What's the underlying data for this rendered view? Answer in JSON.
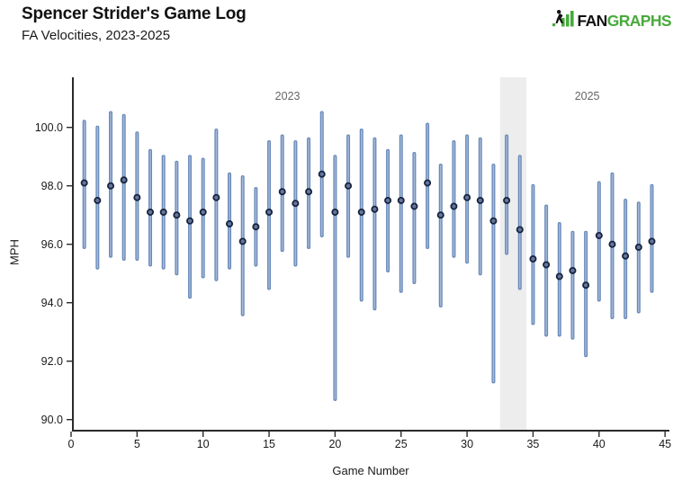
{
  "header": {
    "title": "Spencer Strider's Game Log",
    "subtitle": "FA Velocities, 2023-2025"
  },
  "logo": {
    "fan": "FAN",
    "graphs": "GRAPHS",
    "green": "#48a93c"
  },
  "chart_data": {
    "type": "scatter",
    "variant": "vertical-range-bars-with-mean-dot",
    "title": "Spencer Strider's Game Log",
    "subtitle": "FA Velocities, 2023-2025",
    "xlabel": "Game Number",
    "ylabel": "MPH",
    "xlim": [
      0,
      45
    ],
    "ylim": [
      90,
      101
    ],
    "x_ticks": [
      0,
      5,
      10,
      15,
      20,
      25,
      30,
      35,
      40,
      45
    ],
    "y_ticks": [
      90,
      92,
      94,
      96,
      98,
      100
    ],
    "grid": false,
    "legend": false,
    "annotations": {
      "band": {
        "x0": 32.5,
        "x1": 34.5,
        "color": "#ededed",
        "meaning": "gap between seasons"
      },
      "year_labels": [
        {
          "text": "2023",
          "x": 16.4
        },
        {
          "text": "2025",
          "x": 39.1
        }
      ]
    },
    "colors": {
      "bar": "#6889b9",
      "bar_highlight": "#a9bcd9",
      "dot_fill": "#64779a",
      "dot_stroke": "#16233f",
      "axis": "#2a2a2a",
      "tick_label": "#1a1a1a",
      "year_label": "#666666"
    },
    "points": [
      {
        "game": 1,
        "min": 95.9,
        "mean": 98.1,
        "max": 100.2
      },
      {
        "game": 2,
        "min": 95.2,
        "mean": 97.5,
        "max": 100.0
      },
      {
        "game": 3,
        "min": 95.6,
        "mean": 98.0,
        "max": 100.5
      },
      {
        "game": 4,
        "min": 95.5,
        "mean": 98.2,
        "max": 100.4
      },
      {
        "game": 5,
        "min": 95.5,
        "mean": 97.6,
        "max": 99.8
      },
      {
        "game": 6,
        "min": 95.3,
        "mean": 97.1,
        "max": 99.2
      },
      {
        "game": 7,
        "min": 95.2,
        "mean": 97.1,
        "max": 99.0
      },
      {
        "game": 8,
        "min": 95.0,
        "mean": 97.0,
        "max": 98.8
      },
      {
        "game": 9,
        "min": 94.2,
        "mean": 96.8,
        "max": 99.0
      },
      {
        "game": 10,
        "min": 94.9,
        "mean": 97.1,
        "max": 98.9
      },
      {
        "game": 11,
        "min": 94.8,
        "mean": 97.6,
        "max": 99.9
      },
      {
        "game": 12,
        "min": 95.2,
        "mean": 96.7,
        "max": 98.4
      },
      {
        "game": 13,
        "min": 93.6,
        "mean": 96.1,
        "max": 98.3
      },
      {
        "game": 14,
        "min": 95.3,
        "mean": 96.6,
        "max": 97.9
      },
      {
        "game": 15,
        "min": 94.5,
        "mean": 97.1,
        "max": 99.5
      },
      {
        "game": 16,
        "min": 95.8,
        "mean": 97.8,
        "max": 99.7
      },
      {
        "game": 17,
        "min": 95.3,
        "mean": 97.4,
        "max": 99.5
      },
      {
        "game": 18,
        "min": 95.9,
        "mean": 97.8,
        "max": 99.6
      },
      {
        "game": 19,
        "min": 96.3,
        "mean": 98.4,
        "max": 100.5
      },
      {
        "game": 20,
        "min": 90.7,
        "mean": 97.1,
        "max": 99.0
      },
      {
        "game": 21,
        "min": 95.6,
        "mean": 98.0,
        "max": 99.7
      },
      {
        "game": 22,
        "min": 94.1,
        "mean": 97.1,
        "max": 99.9
      },
      {
        "game": 23,
        "min": 93.8,
        "mean": 97.2,
        "max": 99.6
      },
      {
        "game": 24,
        "min": 95.1,
        "mean": 97.5,
        "max": 99.2
      },
      {
        "game": 25,
        "min": 94.4,
        "mean": 97.5,
        "max": 99.7
      },
      {
        "game": 26,
        "min": 94.7,
        "mean": 97.3,
        "max": 99.1
      },
      {
        "game": 27,
        "min": 95.9,
        "mean": 98.1,
        "max": 100.1
      },
      {
        "game": 28,
        "min": 93.9,
        "mean": 97.0,
        "max": 98.7
      },
      {
        "game": 29,
        "min": 95.6,
        "mean": 97.3,
        "max": 99.5
      },
      {
        "game": 30,
        "min": 95.4,
        "mean": 97.6,
        "max": 99.7
      },
      {
        "game": 31,
        "min": 95.0,
        "mean": 97.5,
        "max": 99.6
      },
      {
        "game": 32,
        "min": 91.3,
        "mean": 96.8,
        "max": 98.7
      },
      {
        "game": 33,
        "min": 95.7,
        "mean": 97.5,
        "max": 99.7
      },
      {
        "game": 34,
        "min": 94.5,
        "mean": 96.5,
        "max": 99.0
      },
      {
        "game": 35,
        "min": 93.3,
        "mean": 95.5,
        "max": 98.0
      },
      {
        "game": 36,
        "min": 92.9,
        "mean": 95.3,
        "max": 97.3
      },
      {
        "game": 37,
        "min": 92.9,
        "mean": 94.9,
        "max": 96.7
      },
      {
        "game": 38,
        "min": 92.8,
        "mean": 95.1,
        "max": 96.4
      },
      {
        "game": 39,
        "min": 92.2,
        "mean": 94.6,
        "max": 96.4
      },
      {
        "game": 40,
        "min": 94.1,
        "mean": 96.3,
        "max": 98.1
      },
      {
        "game": 41,
        "min": 93.5,
        "mean": 96.0,
        "max": 98.4
      },
      {
        "game": 42,
        "min": 93.5,
        "mean": 95.6,
        "max": 97.5
      },
      {
        "game": 43,
        "min": 93.7,
        "mean": 95.9,
        "max": 97.4
      },
      {
        "game": 44,
        "min": 94.4,
        "mean": 96.1,
        "max": 98.0
      }
    ]
  }
}
